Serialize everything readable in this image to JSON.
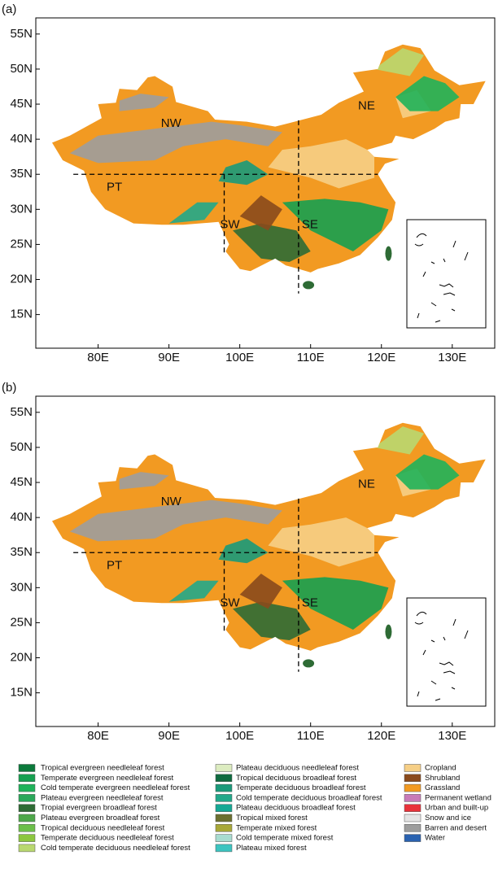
{
  "panels": [
    {
      "label": "(a)"
    },
    {
      "label": "(b)"
    }
  ],
  "xlim": [
    71.2,
    136
  ],
  "ylim": [
    10.2,
    57.3
  ],
  "lon_ticks": [
    {
      "value": 80,
      "label": "80E"
    },
    {
      "value": 90,
      "label": "90E"
    },
    {
      "value": 100,
      "label": "100E"
    },
    {
      "value": 110,
      "label": "110E"
    },
    {
      "value": 120,
      "label": "120E"
    },
    {
      "value": 130,
      "label": "130E"
    }
  ],
  "lat_ticks": [
    {
      "value": 55,
      "label": "55N"
    },
    {
      "value": 50,
      "label": "50N"
    },
    {
      "value": 45,
      "label": "45N"
    },
    {
      "value": 40,
      "label": "40N"
    },
    {
      "value": 35,
      "label": "35N"
    },
    {
      "value": 30,
      "label": "30N"
    },
    {
      "value": 25,
      "label": "25N"
    },
    {
      "value": 20,
      "label": "20N"
    },
    {
      "value": 15,
      "label": "15N"
    }
  ],
  "regions": [
    "NW",
    "NE",
    "PT",
    "SW",
    "SE"
  ],
  "legend": [
    {
      "label": "Tropical evergreen needleleaf forest",
      "color": "#0b7a3b"
    },
    {
      "label": "Temperate evergreen needleleaf forest",
      "color": "#16a050"
    },
    {
      "label": "Cold temperate evergreen needleleaf forest",
      "color": "#1fb35a"
    },
    {
      "label": "Plateau evergreen needleleaf forest",
      "color": "#2aa85a"
    },
    {
      "label": "Tropial evergreen broadleaf forest",
      "color": "#2e6b35"
    },
    {
      "label": "Plateau evergreen broadleaf forest",
      "color": "#4ea84a"
    },
    {
      "label": "Tropical deciduous needleleaf forest",
      "color": "#6cbf4a"
    },
    {
      "label": "Temperate deciduous needleleaf forest",
      "color": "#8cc63f"
    },
    {
      "label": "Cold temperate deciduous needleleaf forest",
      "color": "#b9d870"
    },
    {
      "label": "Plateau deciduous needleleaf forest",
      "color": "#dcecc0"
    },
    {
      "label": "Tropical deciduous broadleaf forest",
      "color": "#0f6b40"
    },
    {
      "label": "Temperate deciduous broadleaf forest",
      "color": "#1a9a7a"
    },
    {
      "label": "Cold temperate deciduous broadleaf forest",
      "color": "#22a88a"
    },
    {
      "label": "Plateau deciduous broadleaf forest",
      "color": "#16a894"
    },
    {
      "label": "Tropical mixed forest",
      "color": "#6b7030"
    },
    {
      "label": "Temperate mixed forest",
      "color": "#a8a838"
    },
    {
      "label": "Cold temperate mixed forest",
      "color": "#a8dcd0"
    },
    {
      "label": "Plateau mixed forest",
      "color": "#3cc4c0"
    },
    {
      "label": "Cropland",
      "color": "#f6cf86"
    },
    {
      "label": "Shrubland",
      "color": "#8a4a1c"
    },
    {
      "label": "Grassland",
      "color": "#f29a22"
    },
    {
      "label": "Permanent wetland",
      "color": "#c87ab8"
    },
    {
      "label": "Urban and built-up",
      "color": "#e8323a"
    },
    {
      "label": "Snow and ice",
      "color": "#e4e4e4"
    },
    {
      "label": "Barren and desert",
      "color": "#9d9d9d"
    },
    {
      "label": "Water",
      "color": "#2a62b0"
    }
  ]
}
